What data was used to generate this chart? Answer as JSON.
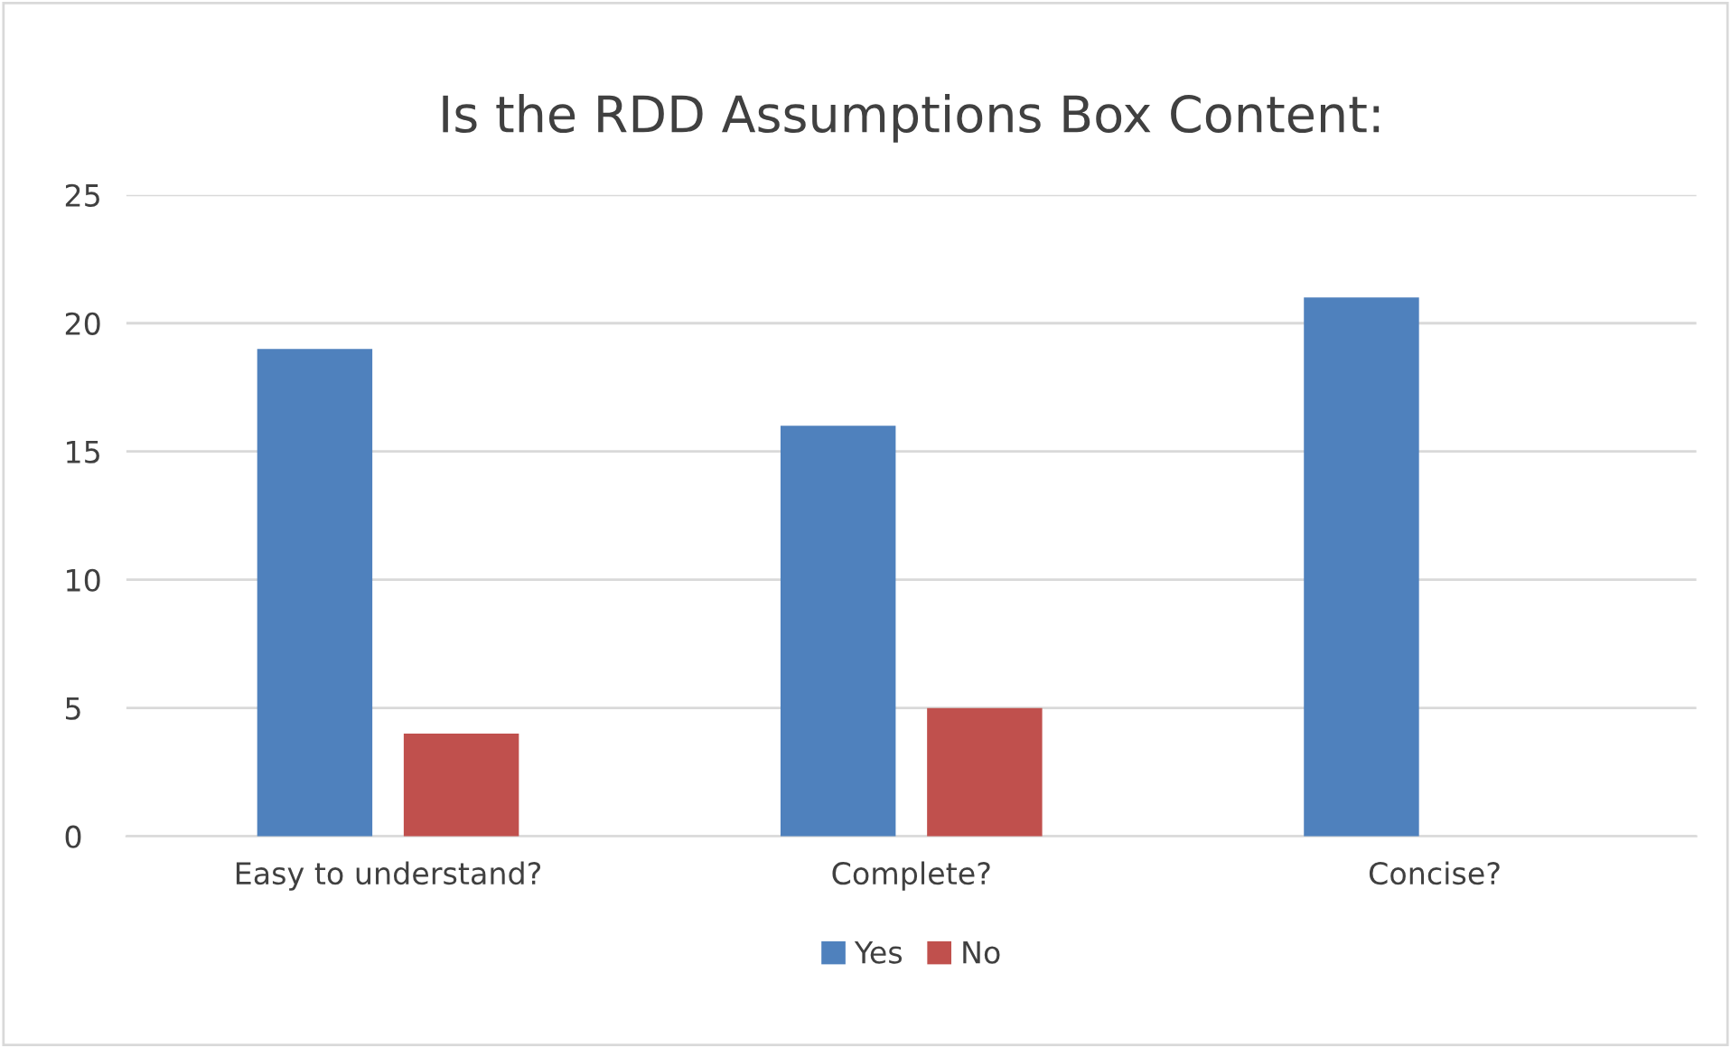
{
  "chart_data": {
    "type": "bar",
    "title": "Is the RDD Assumptions Box Content:",
    "categories": [
      "Easy to understand?",
      "Complete?",
      "Concise?"
    ],
    "series": [
      {
        "name": "Yes",
        "color": "#4f81bd",
        "values": [
          19,
          16,
          21
        ]
      },
      {
        "name": "No",
        "color": "#c0504d",
        "values": [
          4,
          5,
          0
        ]
      }
    ],
    "ylim": [
      0,
      25
    ],
    "yticks": [
      0,
      5,
      10,
      15,
      20,
      25
    ],
    "grid": "y",
    "legend": "bottom"
  }
}
